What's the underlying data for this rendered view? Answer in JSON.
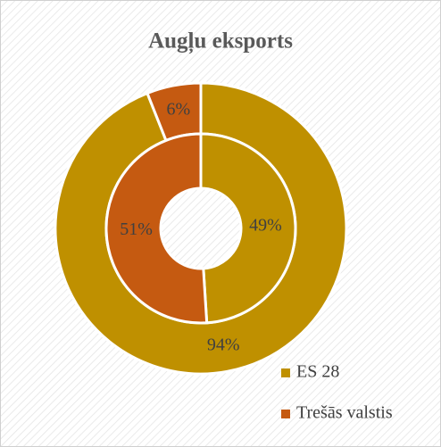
{
  "chart_data": {
    "type": "donut",
    "title": "Augļu eksports",
    "categories": [
      "ES 28",
      "Trešās valstis"
    ],
    "colors": [
      "#bf9000",
      "#c55a11"
    ],
    "series": [
      {
        "values": [
          94,
          6
        ],
        "value_labels": [
          "94%",
          "6%"
        ]
      },
      {
        "values": [
          49,
          51
        ],
        "value_labels": [
          "49%",
          "51%"
        ]
      }
    ],
    "legend": "bottom-right"
  }
}
